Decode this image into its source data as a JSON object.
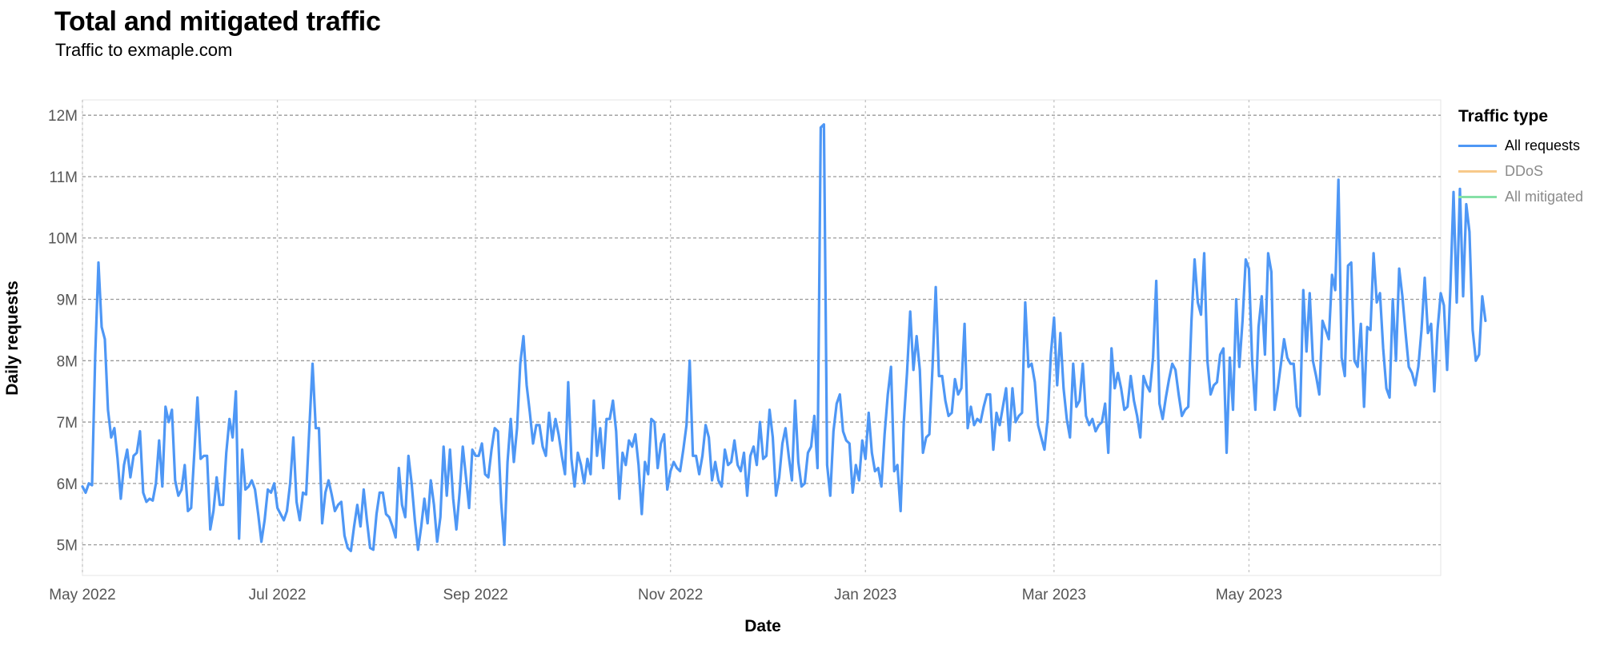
{
  "chart_data": {
    "type": "line",
    "title": "Total and mitigated traffic",
    "subtitle": "Traffic to exmaple.com",
    "xlabel": "Date",
    "ylabel": "Daily requests",
    "xlim": [
      "2022-05-01",
      "2023-06-30"
    ],
    "ylim": [
      4500000,
      12250000
    ],
    "yticks": [
      5000000,
      6000000,
      7000000,
      8000000,
      9000000,
      10000000,
      11000000,
      12000000
    ],
    "ytick_labels": [
      "5M",
      "6M",
      "7M",
      "8M",
      "9M",
      "10M",
      "11M",
      "12M"
    ],
    "xticks": [
      "2022-05-01",
      "2022-07-01",
      "2022-09-01",
      "2022-11-01",
      "2023-01-01",
      "2023-03-01",
      "2023-05-01"
    ],
    "xtick_labels": [
      "May 2022",
      "Jul 2022",
      "Sep 2022",
      "Nov 2022",
      "Jan 2023",
      "Mar 2023",
      "May 2023"
    ],
    "grid": true,
    "legend": {
      "title": "Traffic type",
      "placement": "right",
      "entries": [
        {
          "name": "All requests",
          "color": "#4e97f5",
          "active": true
        },
        {
          "name": "DDoS",
          "color": "#f8c98a",
          "active": false
        },
        {
          "name": "All mitigated",
          "color": "#86e0a6",
          "active": false
        }
      ]
    },
    "series": [
      {
        "name": "All requests",
        "color": "#4e97f5",
        "start_date": "2022-05-01",
        "step_days": 1,
        "values": [
          5.95,
          5.85,
          6.0,
          5.97,
          8.1,
          9.6,
          8.55,
          8.35,
          7.2,
          6.75,
          6.9,
          6.4,
          5.75,
          6.3,
          6.55,
          6.1,
          6.45,
          6.5,
          6.85,
          5.85,
          5.7,
          5.75,
          5.72,
          6.0,
          6.7,
          5.95,
          7.25,
          7.0,
          7.2,
          6.05,
          5.8,
          5.9,
          6.3,
          5.55,
          5.6,
          6.5,
          7.4,
          6.4,
          6.45,
          6.45,
          5.25,
          5.55,
          6.1,
          5.65,
          5.65,
          6.5,
          7.05,
          6.75,
          7.5,
          5.1,
          6.55,
          5.9,
          5.95,
          6.05,
          5.9,
          5.5,
          5.05,
          5.4,
          5.9,
          5.85,
          6.0,
          5.6,
          5.5,
          5.4,
          5.55,
          6.0,
          6.75,
          5.7,
          5.4,
          5.85,
          5.82,
          6.9,
          7.95,
          6.9,
          6.9,
          5.35,
          5.85,
          6.05,
          5.82,
          5.55,
          5.65,
          5.7,
          5.15,
          4.95,
          4.9,
          5.3,
          5.65,
          5.3,
          5.9,
          5.4,
          4.95,
          4.92,
          5.5,
          5.85,
          5.85,
          5.5,
          5.45,
          5.3,
          5.12,
          6.25,
          5.65,
          5.45,
          6.45,
          6.0,
          5.4,
          4.92,
          5.3,
          5.75,
          5.35,
          6.05,
          5.65,
          5.05,
          5.45,
          6.6,
          5.8,
          6.55,
          5.75,
          5.25,
          5.85,
          6.6,
          6.1,
          5.6,
          6.55,
          6.45,
          6.45,
          6.65,
          6.15,
          6.1,
          6.55,
          6.9,
          6.85,
          5.7,
          5.0,
          6.35,
          7.05,
          6.35,
          6.9,
          7.95,
          8.4,
          7.6,
          7.15,
          6.65,
          6.95,
          6.95,
          6.6,
          6.45,
          7.15,
          6.7,
          7.05,
          6.8,
          6.45,
          6.15,
          7.65,
          6.4,
          5.95,
          6.5,
          6.3,
          6.0,
          6.4,
          6.15,
          7.35,
          6.45,
          6.9,
          6.25,
          7.05,
          7.05,
          7.35,
          6.85,
          5.75,
          6.5,
          6.3,
          6.7,
          6.6,
          6.8,
          6.3,
          5.5,
          6.35,
          6.15,
          7.05,
          7.0,
          6.25,
          6.65,
          6.8,
          5.9,
          6.2,
          6.35,
          6.25,
          6.2,
          6.55,
          6.95,
          8.0,
          6.45,
          6.45,
          6.15,
          6.45,
          6.95,
          6.75,
          6.05,
          6.35,
          6.05,
          5.95,
          6.55,
          6.3,
          6.35,
          6.7,
          6.3,
          6.2,
          6.5,
          5.8,
          6.45,
          6.6,
          6.3,
          7.0,
          6.4,
          6.45,
          7.2,
          6.75,
          5.8,
          6.1,
          6.65,
          6.9,
          6.45,
          6.05,
          7.35,
          6.35,
          5.95,
          6.0,
          6.5,
          6.6,
          7.1,
          6.25,
          11.8,
          11.85,
          6.3,
          5.8,
          6.85,
          7.3,
          7.45,
          6.85,
          6.7,
          6.65,
          5.85,
          6.3,
          6.05,
          6.7,
          6.4,
          7.15,
          6.5,
          6.2,
          6.25,
          5.95,
          6.8,
          7.45,
          7.9,
          6.2,
          6.3,
          5.55,
          7.0,
          7.8,
          8.8,
          7.85,
          8.4,
          7.85,
          6.5,
          6.75,
          6.8,
          7.9,
          9.2,
          7.75,
          7.75,
          7.35,
          7.1,
          7.15,
          7.7,
          7.45,
          7.55,
          8.6,
          6.9,
          7.25,
          6.95,
          7.05,
          7.0,
          7.25,
          7.45,
          7.45,
          6.55,
          7.15,
          6.95,
          7.25,
          7.55,
          6.7,
          7.55,
          7.0,
          7.1,
          7.15,
          8.95,
          7.9,
          7.95,
          7.65,
          6.95,
          6.75,
          6.55,
          7.05,
          8.1,
          8.7,
          7.6,
          8.45,
          7.55,
          7.05,
          6.75,
          7.95,
          7.25,
          7.35,
          7.95,
          7.1,
          6.95,
          7.05,
          6.85,
          6.95,
          7.0,
          7.3,
          6.5,
          8.2,
          7.55,
          7.8,
          7.55,
          7.2,
          7.25,
          7.75,
          7.35,
          7.1,
          6.75,
          7.75,
          7.6,
          7.5,
          8.05,
          9.3,
          7.3,
          7.05,
          7.4,
          7.7,
          7.95,
          7.85,
          7.45,
          7.1,
          7.2,
          7.25,
          8.65,
          9.65,
          8.95,
          8.75,
          9.75,
          8.0,
          7.45,
          7.6,
          7.65,
          8.1,
          8.2,
          6.5,
          8.05,
          7.2,
          9.0,
          7.9,
          8.65,
          9.65,
          9.5,
          8.0,
          7.2,
          8.55,
          9.05,
          8.1,
          9.75,
          9.45,
          7.2,
          7.55,
          7.95,
          8.35,
          8.05,
          7.95,
          7.95,
          7.25,
          7.1,
          9.15,
          8.15,
          9.1,
          8.0,
          7.75,
          7.45,
          8.65,
          8.5,
          8.35,
          9.4,
          9.15,
          10.95,
          8.05,
          7.75,
          9.55,
          9.6,
          8.0,
          7.9,
          8.6,
          7.25,
          8.55,
          8.5,
          9.75,
          8.95,
          9.1,
          8.2,
          7.55,
          7.4,
          9.0,
          8.0,
          9.5,
          9.05,
          8.45,
          7.9,
          7.8,
          7.6,
          7.9,
          8.5,
          9.35,
          8.45,
          8.6,
          7.5,
          8.5,
          9.1,
          8.9,
          7.85,
          9.15,
          10.75,
          8.95,
          10.8,
          9.05,
          10.55,
          10.1,
          8.5,
          8.0,
          8.1,
          9.05,
          8.65
        ]
      }
    ]
  }
}
